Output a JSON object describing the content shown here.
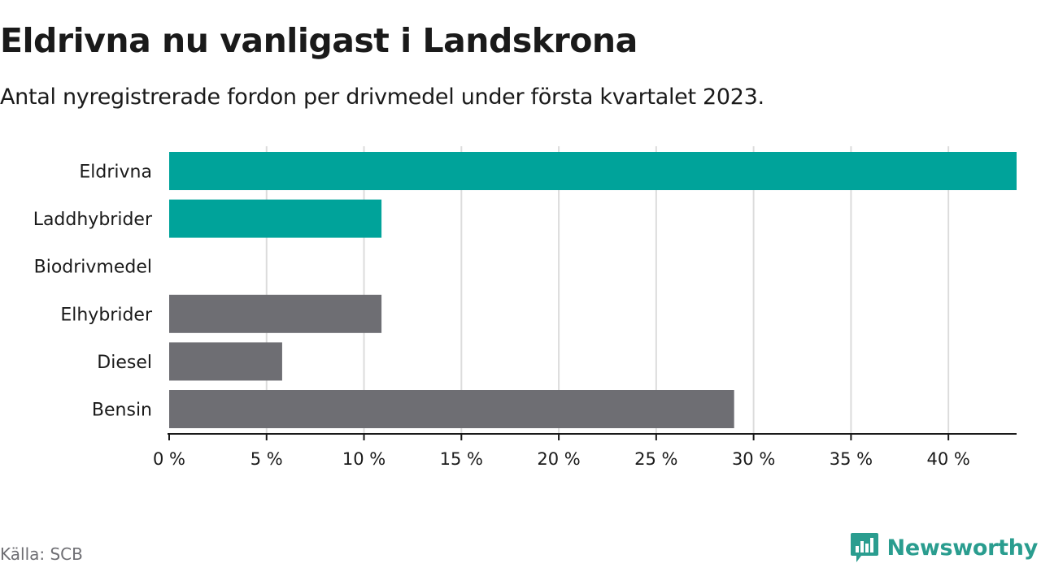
{
  "title": "Eldrivna nu vanligast i Landskrona",
  "subtitle": "Antal nyregistrerade fordon per drivmedel under första kvartalet 2023.",
  "source": "Källa: SCB",
  "brand": {
    "name": "Newsworthy",
    "icon": "newsworthy-logo-icon",
    "color": "#2a9d8f"
  },
  "chart_data": {
    "type": "bar",
    "orientation": "horizontal",
    "categories": [
      "Eldrivna",
      "Laddhybrider",
      "Biodrivmedel",
      "Elhybrider",
      "Diesel",
      "Bensin"
    ],
    "values": [
      43.5,
      10.9,
      0,
      10.9,
      5.8,
      29.0
    ],
    "colors": [
      "#00a39a",
      "#00a39a",
      "#00a39a",
      "#6e6e73",
      "#6e6e73",
      "#6e6e73"
    ],
    "xlim": [
      0,
      43.5
    ],
    "xticks": [
      0,
      5,
      10,
      15,
      20,
      25,
      30,
      35,
      40
    ],
    "xtick_labels": [
      "0 %",
      "5 %",
      "10 %",
      "15 %",
      "20 %",
      "25 %",
      "30 %",
      "35 %",
      "40 %"
    ],
    "grid": true
  }
}
